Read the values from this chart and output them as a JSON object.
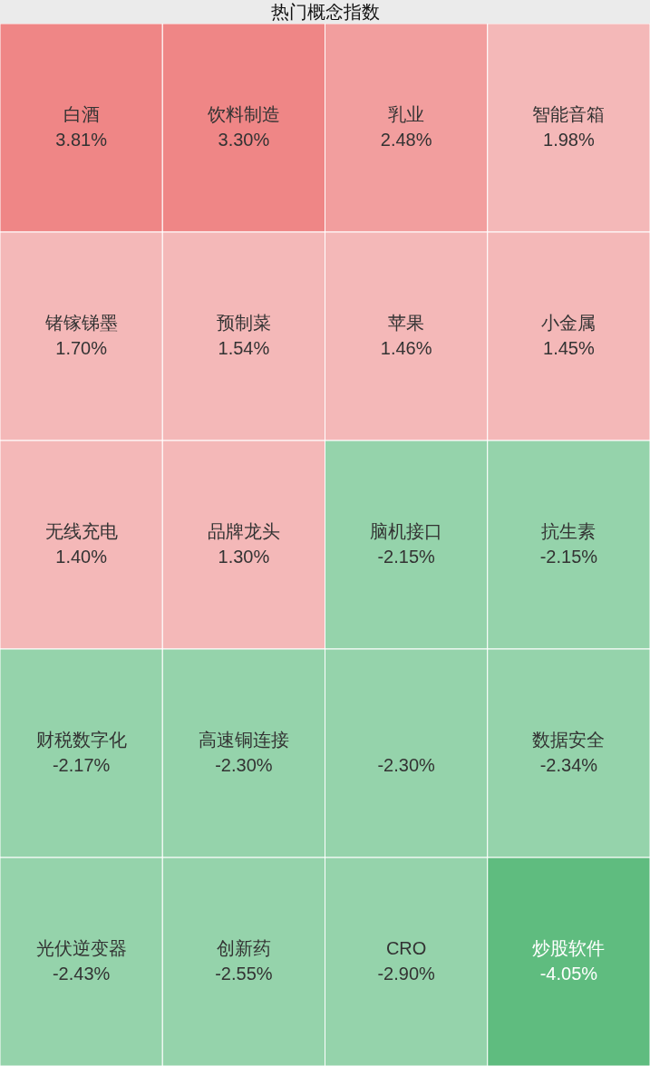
{
  "chart_data": {
    "type": "other",
    "title": "热门概念指数",
    "categories": [
      "白酒",
      "饮料制造",
      "乳业",
      "智能音箱",
      "锗镓锑墨",
      "预制菜",
      "苹果",
      "小金属",
      "无线充电",
      "品牌龙头",
      "脑机接口",
      "抗生素",
      "财税数字化",
      "高速铜连接",
      null,
      "数据安全",
      "光伏逆变器",
      "创新药",
      "CRO",
      "炒股软件"
    ],
    "values": [
      3.81,
      3.3,
      2.48,
      1.98,
      1.7,
      1.54,
      1.46,
      1.45,
      1.4,
      1.3,
      -2.15,
      -2.15,
      -2.17,
      -2.3,
      -2.3,
      -2.34,
      -2.43,
      -2.55,
      -2.9,
      -4.05
    ],
    "value_labels": [
      "3.81%",
      "3.30%",
      "2.48%",
      "1.98%",
      "1.70%",
      "1.54%",
      "1.46%",
      "1.45%",
      "1.40%",
      "1.30%",
      "-2.15%",
      "-2.15%",
      "-2.17%",
      "-2.30%",
      "-2.30%",
      "-2.34%",
      "-2.43%",
      "-2.55%",
      "-2.90%",
      "-4.05%"
    ],
    "colors": [
      "#ef8686",
      "#ef8686",
      "#f29e9e",
      "#f4b8b8",
      "#f4b8b8",
      "#f4b8b8",
      "#f4b8b8",
      "#f4b8b8",
      "#f4b8b8",
      "#f4b8b8",
      "#95d3ab",
      "#95d3ab",
      "#95d3ab",
      "#95d3ab",
      "#95d3ab",
      "#95d3ab",
      "#95d3ab",
      "#95d3ab",
      "#95d3ab",
      "#5fbc7f"
    ]
  }
}
